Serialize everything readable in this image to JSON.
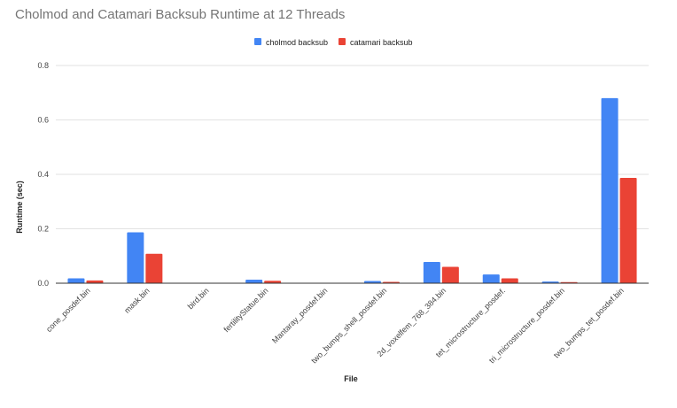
{
  "chart_data": {
    "type": "bar",
    "title": "Cholmod and Catamari Backsub Runtime at 12 Threads",
    "xlabel": "File",
    "ylabel": "Runtime (sec)",
    "ylim": [
      0,
      0.8
    ],
    "yticks": [
      "0.0",
      "0.2",
      "0.4",
      "0.6",
      "0.8"
    ],
    "grid": true,
    "legend_position": "top",
    "categories": [
      "cone_posdef.bin",
      "mask.bin",
      "bird.bin",
      "fertilityStatue.bin",
      "Mantaray_posdef.bin",
      "two_bumps_shell_posdef.bin",
      "2d_voxelfem_768_384.bin",
      "tet_microstructure_posdef.",
      "tri_microstructure_posdef.bin",
      "two_bumps_tet_posdef.bin"
    ],
    "series": [
      {
        "name": "cholmod backsub",
        "color": "#4285f4",
        "values": [
          0.018,
          0.187,
          0.0,
          0.013,
          0.0,
          0.008,
          0.078,
          0.032,
          0.006,
          0.68
        ]
      },
      {
        "name": "catamari backsub",
        "color": "#ea4335",
        "values": [
          0.01,
          0.108,
          0.0,
          0.009,
          0.0,
          0.005,
          0.06,
          0.018,
          0.004,
          0.387
        ]
      }
    ]
  }
}
